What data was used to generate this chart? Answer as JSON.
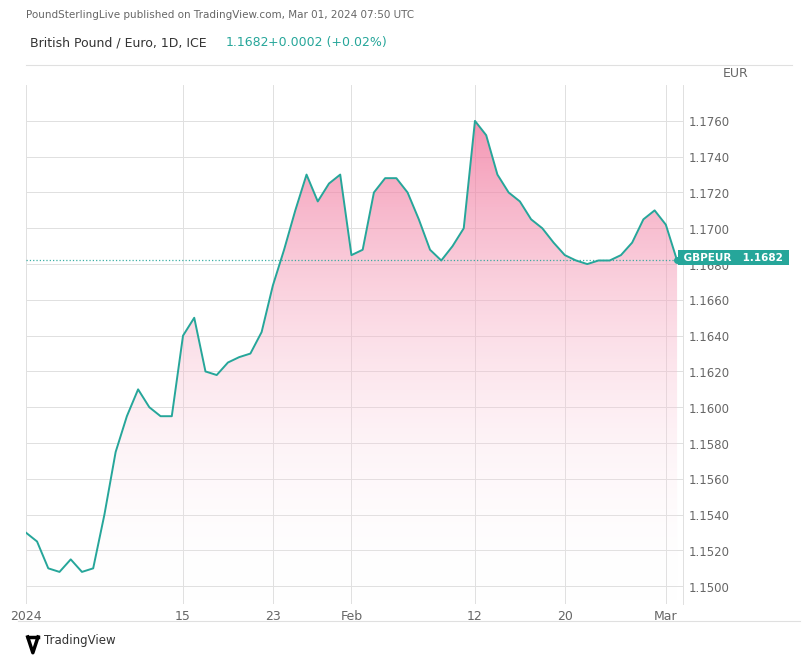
{
  "title_top": "PoundSterlingLive published on TradingView.com, Mar 01, 2024 07:50 UTC",
  "subtitle": "British Pound / Euro, 1D, ICE",
  "subtitle_value": "1.1682",
  "subtitle_change": "+0.0002 (+0.02%)",
  "ylabel": "EUR",
  "current_label": "GBPEUR",
  "current_value": "1.1682",
  "hline_value": 1.1682,
  "ylim": [
    1.149,
    1.178
  ],
  "ytick_vals": [
    1.15,
    1.152,
    1.154,
    1.156,
    1.158,
    1.16,
    1.162,
    1.164,
    1.166,
    1.168,
    1.17,
    1.172,
    1.174,
    1.176
  ],
  "ytick_labels": [
    "1.1500",
    "1.1520",
    "1.1540",
    "1.1560",
    "1.1580",
    "1.1600",
    "1.1620",
    "1.1640",
    "1.1660",
    "1.1680",
    "1.1700",
    "1.1720",
    "1.1740",
    "1.1760"
  ],
  "xtick_positions": [
    0,
    14,
    22,
    29,
    40,
    48,
    57
  ],
  "xtick_labels": [
    "2024",
    "15",
    "23",
    "Feb",
    "12",
    "20",
    "Mar"
  ],
  "line_color": "#26a69a",
  "fill_color_top": "#f06292",
  "fill_color_bottom": "#ffffff",
  "bg_color": "#ffffff",
  "grid_color": "#e0e0e0",
  "label_bg_color": "#26a69a",
  "label_text_color": "#ffffff",
  "hline_color": "#26a69a",
  "y_values": [
    1.153,
    1.1525,
    1.151,
    1.1508,
    1.1515,
    1.1508,
    1.151,
    1.154,
    1.1575,
    1.1595,
    1.161,
    1.16,
    1.1595,
    1.1595,
    1.164,
    1.165,
    1.162,
    1.1618,
    1.1625,
    1.1628,
    1.163,
    1.1642,
    1.1668,
    1.1688,
    1.171,
    1.173,
    1.1715,
    1.1725,
    1.173,
    1.1685,
    1.1688,
    1.172,
    1.1728,
    1.1728,
    1.172,
    1.1705,
    1.1688,
    1.1682,
    1.169,
    1.17,
    1.176,
    1.1752,
    1.173,
    1.172,
    1.1715,
    1.1705,
    1.17,
    1.1692,
    1.1685,
    1.1682,
    1.168,
    1.1682,
    1.1682,
    1.1685,
    1.1692,
    1.1705,
    1.171,
    1.1702,
    1.1682
  ]
}
